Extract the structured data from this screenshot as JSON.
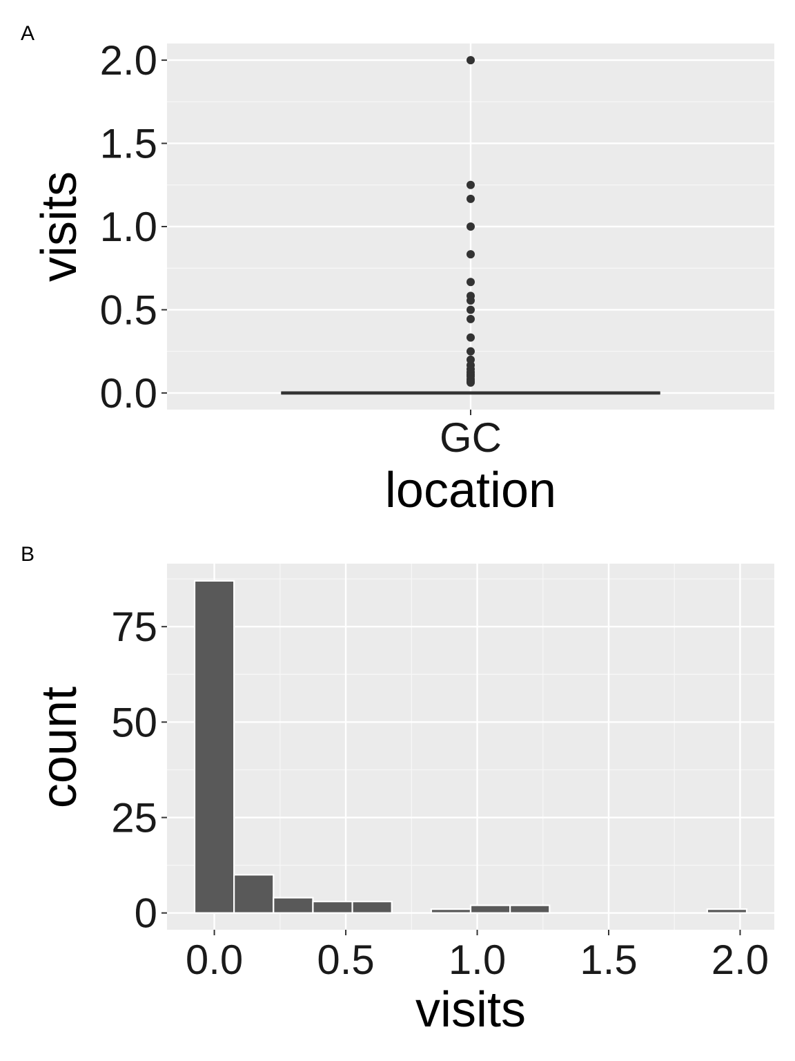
{
  "chart_data": [
    {
      "panel": "A",
      "type": "boxplot",
      "categories": [
        "GC"
      ],
      "xlabel": "location",
      "ylabel": "visits",
      "ylim": [
        -0.1,
        2.1
      ],
      "yticks": [
        "0.0",
        "0.5",
        "1.0",
        "1.5",
        "2.0"
      ],
      "box": {
        "q1": 0,
        "median": 0,
        "q3": 0,
        "whisker_low": 0,
        "whisker_high": 0
      },
      "outliers": [
        2.0,
        1.25,
        1.1667,
        1.0,
        0.8333,
        0.6667,
        0.5833,
        0.5556,
        0.5,
        0.4444,
        0.3333,
        0.25,
        0.2,
        0.1667,
        0.1429,
        0.125,
        0.1111,
        0.1,
        0.0833,
        0.0714,
        0.0625
      ],
      "grid": true,
      "panel_background": "#ebebeb",
      "mark_color": "#333333"
    },
    {
      "panel": "B",
      "type": "histogram",
      "xlabel": "visits",
      "ylabel": "count",
      "xlim": [
        -0.18,
        2.13
      ],
      "ylim": [
        -4.4,
        91.5
      ],
      "xticks": [
        "0.0",
        "0.5",
        "1.0",
        "1.5",
        "2.0"
      ],
      "yticks": [
        "0",
        "25",
        "50",
        "75"
      ],
      "bins": [
        {
          "x0": -0.075,
          "x1": 0.075,
          "count": 87
        },
        {
          "x0": 0.075,
          "x1": 0.225,
          "count": 10
        },
        {
          "x0": 0.225,
          "x1": 0.375,
          "count": 4
        },
        {
          "x0": 0.375,
          "x1": 0.525,
          "count": 3
        },
        {
          "x0": 0.525,
          "x1": 0.675,
          "count": 3
        },
        {
          "x0": 0.675,
          "x1": 0.825,
          "count": 0
        },
        {
          "x0": 0.825,
          "x1": 0.975,
          "count": 1
        },
        {
          "x0": 0.975,
          "x1": 1.125,
          "count": 2
        },
        {
          "x0": 1.125,
          "x1": 1.275,
          "count": 2
        },
        {
          "x0": 1.275,
          "x1": 1.425,
          "count": 0
        },
        {
          "x0": 1.425,
          "x1": 1.575,
          "count": 0
        },
        {
          "x0": 1.575,
          "x1": 1.725,
          "count": 0
        },
        {
          "x0": 1.725,
          "x1": 1.875,
          "count": 0
        },
        {
          "x0": 1.875,
          "x1": 2.025,
          "count": 1
        }
      ],
      "grid": true,
      "panel_background": "#ebebeb",
      "bar_fill": "#595959",
      "bar_outline": "#ffffff"
    }
  ],
  "panels": {
    "a": {
      "tag": "A",
      "x_tick": "GC",
      "xlabel": "location",
      "ylabel": "visits"
    },
    "b": {
      "tag": "B",
      "xlabel": "visits",
      "ylabel": "count"
    }
  }
}
